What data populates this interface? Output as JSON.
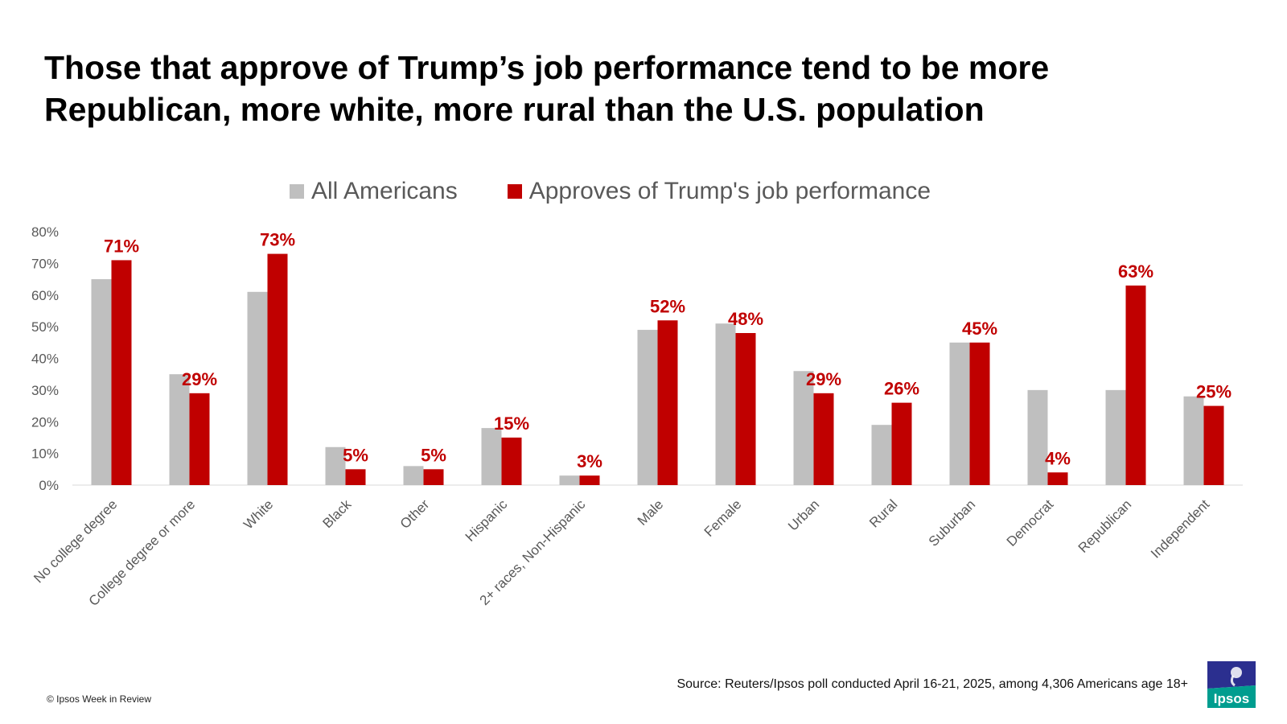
{
  "title_lines": [
    "Those that approve of Trump’s job performance tend to be more",
    "Republican, more white, more rural than the U.S. population"
  ],
  "legend": [
    {
      "label": "All Americans",
      "color": "#bfbfbf"
    },
    {
      "label": "Approves of Trump's job performance",
      "color": "#c00000"
    }
  ],
  "chart_data": {
    "type": "bar",
    "categories": [
      "No college degree",
      "College degree or more",
      "White",
      "Black",
      "Other",
      "Hispanic",
      "2+ races, Non-Hispanic",
      "Male",
      "Female",
      "Urban",
      "Rural",
      "Suburban",
      "Democrat",
      "Republican",
      "Independent"
    ],
    "series": [
      {
        "name": "All Americans",
        "color": "#bfbfbf",
        "values": [
          65,
          35,
          61,
          12,
          6,
          18,
          3,
          49,
          51,
          36,
          19,
          45,
          30,
          30,
          28
        ]
      },
      {
        "name": "Approves of Trump's job performance",
        "color": "#c00000",
        "values": [
          71,
          29,
          73,
          5,
          5,
          15,
          3,
          52,
          48,
          29,
          26,
          45,
          4,
          63,
          25
        ],
        "data_labels": [
          "71%",
          "29%",
          "73%",
          "5%",
          "5%",
          "15%",
          "3%",
          "52%",
          "48%",
          "29%",
          "26%",
          "45%",
          "4%",
          "63%",
          "25%"
        ]
      }
    ],
    "ylim": [
      0,
      80
    ],
    "yticks": [
      "0%",
      "10%",
      "20%",
      "30%",
      "40%",
      "50%",
      "60%",
      "70%",
      "80%"
    ],
    "xlabel": "",
    "ylabel": "",
    "grid": false,
    "legend_position": "top"
  },
  "footer": {
    "copyright": "© Ipsos Week in Review",
    "source": "Source: Reuters/Ipsos poll conducted April 16-21, 2025, among  4,306 Americans age 18+"
  },
  "logo": {
    "text": "Ipsos",
    "color_top": "#2b2f8f",
    "color_bottom": "#009d8f"
  }
}
